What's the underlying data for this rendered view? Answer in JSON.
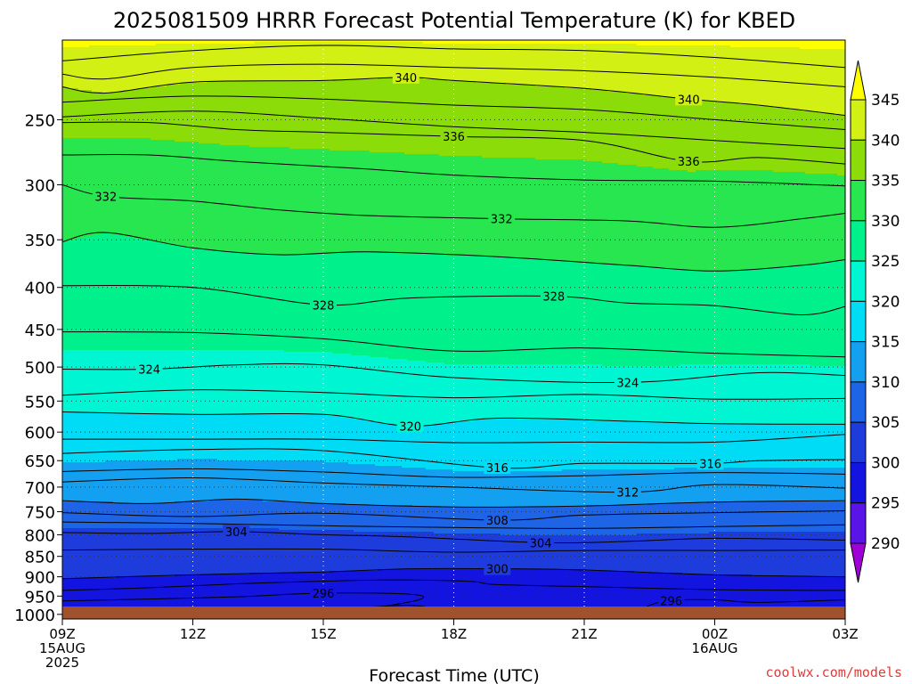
{
  "chart_data": {
    "type": "heatmap",
    "title": "2025081509 HRRR Forecast Potential Temperature (K) for KBED",
    "xlabel": "Forecast Time (UTC)",
    "ylabel": "",
    "credit": "coolwx.com/models",
    "x_ticks": [
      {
        "hour": 0,
        "lines": [
          "09Z",
          "15AUG",
          "2025"
        ]
      },
      {
        "hour": 3,
        "lines": [
          "12Z"
        ]
      },
      {
        "hour": 6,
        "lines": [
          "15Z"
        ]
      },
      {
        "hour": 9,
        "lines": [
          "18Z"
        ]
      },
      {
        "hour": 12,
        "lines": [
          "21Z"
        ]
      },
      {
        "hour": 15,
        "lines": [
          "00Z",
          "16AUG"
        ]
      },
      {
        "hour": 18,
        "lines": [
          "03Z"
        ]
      }
    ],
    "xlim": [
      0,
      18
    ],
    "y_ticks": [
      250,
      300,
      350,
      400,
      450,
      500,
      550,
      600,
      650,
      700,
      750,
      800,
      850,
      900,
      950,
      1000
    ],
    "ylim": [
      1013,
      200
    ],
    "y_scale": "log-pressure (hPa, inverted)",
    "colorbar": {
      "levels": [
        290,
        295,
        300,
        305,
        310,
        315,
        320,
        325,
        330,
        335,
        340,
        345
      ],
      "colors": [
        "#a000d8",
        "#5a14e8",
        "#1414e0",
        "#1e3cdc",
        "#1e64e6",
        "#14a0f0",
        "#00dcf5",
        "#00f5d2",
        "#00f08c",
        "#28e650",
        "#8cdc0a",
        "#d2f014",
        "#ffff00"
      ]
    },
    "terrain_color": "#a0522d",
    "contour_interval_k": 2,
    "contour_labels": [
      {
        "text": "340",
        "hour": 7.9,
        "pres": 222
      },
      {
        "text": "340",
        "hour": 14.4,
        "pres": 236
      },
      {
        "text": "336",
        "hour": 9.0,
        "pres": 262
      },
      {
        "text": "336",
        "hour": 14.4,
        "pres": 281
      },
      {
        "text": "332",
        "hour": 1.0,
        "pres": 310
      },
      {
        "text": "332",
        "hour": 10.1,
        "pres": 330
      },
      {
        "text": "328",
        "hour": 6.0,
        "pres": 420
      },
      {
        "text": "328",
        "hour": 11.3,
        "pres": 410
      },
      {
        "text": "324",
        "hour": 2.0,
        "pres": 503
      },
      {
        "text": "324",
        "hour": 13.0,
        "pres": 522
      },
      {
        "text": "320",
        "hour": 8.0,
        "pres": 590
      },
      {
        "text": "316",
        "hour": 10.0,
        "pres": 663
      },
      {
        "text": "316",
        "hour": 14.9,
        "pres": 655
      },
      {
        "text": "312",
        "hour": 13.0,
        "pres": 710
      },
      {
        "text": "308",
        "hour": 10.0,
        "pres": 768
      },
      {
        "text": "304",
        "hour": 4.0,
        "pres": 793
      },
      {
        "text": "304",
        "hour": 11.0,
        "pres": 818
      },
      {
        "text": "300",
        "hour": 10.0,
        "pres": 880
      },
      {
        "text": "296",
        "hour": 6.0,
        "pres": 942
      },
      {
        "text": "296",
        "hour": 14.0,
        "pres": 962
      }
    ],
    "contour_lines": [
      {
        "value": 343,
        "points": [
          [
            0,
            212
          ],
          [
            3,
            206
          ],
          [
            6,
            203
          ],
          [
            9,
            205
          ],
          [
            12,
            206
          ],
          [
            15,
            210
          ],
          [
            18,
            216
          ]
        ]
      },
      {
        "value": 342,
        "points": [
          [
            0,
            220
          ],
          [
            1,
            223
          ],
          [
            3,
            216
          ],
          [
            6,
            214
          ],
          [
            9,
            216
          ],
          [
            12,
            218
          ],
          [
            15,
            222
          ],
          [
            18,
            228
          ]
        ]
      },
      {
        "value": 340,
        "points": [
          [
            0,
            228
          ],
          [
            1,
            232
          ],
          [
            3,
            225
          ],
          [
            6,
            224
          ],
          [
            7.9,
            222
          ],
          [
            9,
            224
          ],
          [
            12,
            229
          ],
          [
            14.4,
            236
          ],
          [
            16,
            240
          ],
          [
            18,
            247
          ]
        ]
      },
      {
        "value": 338,
        "points": [
          [
            0,
            238
          ],
          [
            3,
            234
          ],
          [
            6,
            236
          ],
          [
            9,
            240
          ],
          [
            12,
            243
          ],
          [
            15,
            250
          ],
          [
            18,
            257
          ]
        ]
      },
      {
        "value": 337,
        "points": [
          [
            0,
            248
          ],
          [
            3,
            244
          ],
          [
            6,
            249
          ],
          [
            9,
            255
          ],
          [
            12,
            259
          ],
          [
            15,
            265
          ],
          [
            18,
            271
          ]
        ]
      },
      {
        "value": 336,
        "points": [
          [
            0,
            252
          ],
          [
            2,
            252
          ],
          [
            4,
            257
          ],
          [
            6,
            259
          ],
          [
            9,
            262
          ],
          [
            12,
            265
          ],
          [
            14.4,
            281
          ],
          [
            16,
            278
          ],
          [
            18,
            283
          ]
        ]
      },
      {
        "value": 334,
        "points": [
          [
            0,
            276
          ],
          [
            2,
            276
          ],
          [
            4,
            281
          ],
          [
            7,
            287
          ],
          [
            9,
            292
          ],
          [
            12,
            296
          ],
          [
            15,
            297
          ],
          [
            18,
            301
          ]
        ]
      },
      {
        "value": 332,
        "points": [
          [
            0,
            300
          ],
          [
            1,
            310
          ],
          [
            3,
            314
          ],
          [
            5,
            322
          ],
          [
            7,
            327
          ],
          [
            10.1,
            330
          ],
          [
            13,
            332
          ],
          [
            15,
            338
          ],
          [
            17,
            330
          ],
          [
            18,
            325
          ]
        ]
      },
      {
        "value": 330,
        "points": [
          [
            0,
            352
          ],
          [
            1,
            343
          ],
          [
            3,
            358
          ],
          [
            5,
            365
          ],
          [
            7,
            362
          ],
          [
            10,
            367
          ],
          [
            13,
            376
          ],
          [
            15,
            382
          ],
          [
            17,
            376
          ],
          [
            18,
            370
          ]
        ]
      },
      {
        "value": 328,
        "points": [
          [
            0,
            398
          ],
          [
            3,
            400
          ],
          [
            6,
            420
          ],
          [
            8,
            412
          ],
          [
            11.3,
            410
          ],
          [
            13,
            418
          ],
          [
            15,
            421
          ],
          [
            17,
            432
          ],
          [
            18,
            422
          ]
        ]
      },
      {
        "value": 326,
        "points": [
          [
            0,
            453
          ],
          [
            3,
            454
          ],
          [
            6,
            462
          ],
          [
            9,
            478
          ],
          [
            12,
            474
          ],
          [
            15,
            481
          ],
          [
            18,
            486
          ]
        ]
      },
      {
        "value": 324,
        "points": [
          [
            0,
            503
          ],
          [
            2,
            503
          ],
          [
            4,
            497
          ],
          [
            6,
            497
          ],
          [
            9,
            515
          ],
          [
            13,
            522
          ],
          [
            16,
            508
          ],
          [
            18,
            512
          ]
        ]
      },
      {
        "value": 322,
        "points": [
          [
            0,
            541
          ],
          [
            3,
            533
          ],
          [
            6,
            537
          ],
          [
            9,
            545
          ],
          [
            12,
            540
          ],
          [
            15,
            547
          ],
          [
            18,
            546
          ]
        ]
      },
      {
        "value": 320,
        "points": [
          [
            0,
            567
          ],
          [
            3,
            571
          ],
          [
            6,
            571
          ],
          [
            8,
            590
          ],
          [
            10,
            577
          ],
          [
            13,
            582
          ],
          [
            15,
            586
          ],
          [
            18,
            587
          ]
        ]
      },
      {
        "value": 318,
        "points": [
          [
            0,
            612
          ],
          [
            3,
            612
          ],
          [
            6,
            612
          ],
          [
            9,
            618
          ],
          [
            12,
            617
          ],
          [
            15,
            617
          ],
          [
            18,
            604
          ]
        ]
      },
      {
        "value": 316,
        "points": [
          [
            0,
            637
          ],
          [
            3,
            630
          ],
          [
            6,
            632
          ],
          [
            10,
            663
          ],
          [
            12,
            655
          ],
          [
            14.9,
            655
          ],
          [
            16,
            650
          ],
          [
            18,
            648
          ]
        ]
      },
      {
        "value": 314,
        "points": [
          [
            0,
            670
          ],
          [
            3,
            665
          ],
          [
            6,
            671
          ],
          [
            9,
            681
          ],
          [
            12,
            678
          ],
          [
            15,
            672
          ],
          [
            18,
            675
          ]
        ]
      },
      {
        "value": 312,
        "points": [
          [
            0,
            690
          ],
          [
            3,
            682
          ],
          [
            6,
            692
          ],
          [
            9,
            700
          ],
          [
            13,
            710
          ],
          [
            15,
            695
          ],
          [
            18,
            702
          ]
        ]
      },
      {
        "value": 310,
        "points": [
          [
            0,
            727
          ],
          [
            2,
            733
          ],
          [
            4,
            724
          ],
          [
            6,
            733
          ],
          [
            9,
            740
          ],
          [
            12,
            738
          ],
          [
            15,
            730
          ],
          [
            18,
            727
          ]
        ]
      },
      {
        "value": 308,
        "points": [
          [
            0,
            752
          ],
          [
            3,
            760
          ],
          [
            6,
            753
          ],
          [
            10,
            768
          ],
          [
            12,
            757
          ],
          [
            15,
            752
          ],
          [
            18,
            748
          ]
        ]
      },
      {
        "value": 306,
        "points": [
          [
            0,
            772
          ],
          [
            3,
            775
          ],
          [
            6,
            780
          ],
          [
            9,
            784
          ],
          [
            12,
            786
          ],
          [
            15,
            782
          ],
          [
            18,
            778
          ]
        ]
      },
      {
        "value": 304,
        "points": [
          [
            0,
            795
          ],
          [
            2,
            797
          ],
          [
            4,
            793
          ],
          [
            6,
            800
          ],
          [
            8,
            805
          ],
          [
            11,
            818
          ],
          [
            13,
            815
          ],
          [
            15,
            808
          ],
          [
            18,
            812
          ]
        ]
      },
      {
        "value": 302,
        "points": [
          [
            0,
            835
          ],
          [
            3,
            833
          ],
          [
            6,
            833
          ],
          [
            9,
            840
          ],
          [
            12,
            836
          ],
          [
            15,
            836
          ],
          [
            18,
            835
          ]
        ]
      },
      {
        "value": 300,
        "points": [
          [
            0,
            905
          ],
          [
            3,
            895
          ],
          [
            6,
            888
          ],
          [
            8,
            880
          ],
          [
            10,
            880
          ],
          [
            12,
            883
          ],
          [
            15,
            895
          ],
          [
            18,
            900
          ]
        ]
      },
      {
        "value": 298,
        "points": [
          [
            0,
            935
          ],
          [
            2,
            928
          ],
          [
            4,
            918
          ],
          [
            6,
            911
          ],
          [
            8,
            908
          ],
          [
            9.4,
            912
          ],
          [
            10,
            920
          ],
          [
            12,
            925
          ],
          [
            15,
            933
          ],
          [
            18,
            935
          ]
        ]
      },
      {
        "value": 296,
        "points": [
          [
            0,
            963
          ],
          [
            2,
            958
          ],
          [
            4,
            952
          ],
          [
            6,
            942
          ],
          [
            8,
            945
          ],
          [
            8.2,
            960
          ],
          [
            7,
            985
          ],
          [
            6,
            1000
          ]
        ]
      },
      {
        "value": 296.5,
        "points": [
          [
            13.2,
            1000
          ],
          [
            13.5,
            975
          ],
          [
            14,
            962
          ],
          [
            15,
            960
          ],
          [
            16,
            967
          ],
          [
            18,
            960
          ]
        ]
      },
      {
        "value": 295,
        "points": [
          [
            0,
            985
          ],
          [
            1,
            982
          ],
          [
            2,
            990
          ],
          [
            3,
            995
          ],
          [
            5,
            990
          ],
          [
            7,
            980
          ],
          [
            8,
            975
          ],
          [
            8.5,
            985
          ],
          [
            8,
            1000
          ]
        ]
      }
    ]
  }
}
